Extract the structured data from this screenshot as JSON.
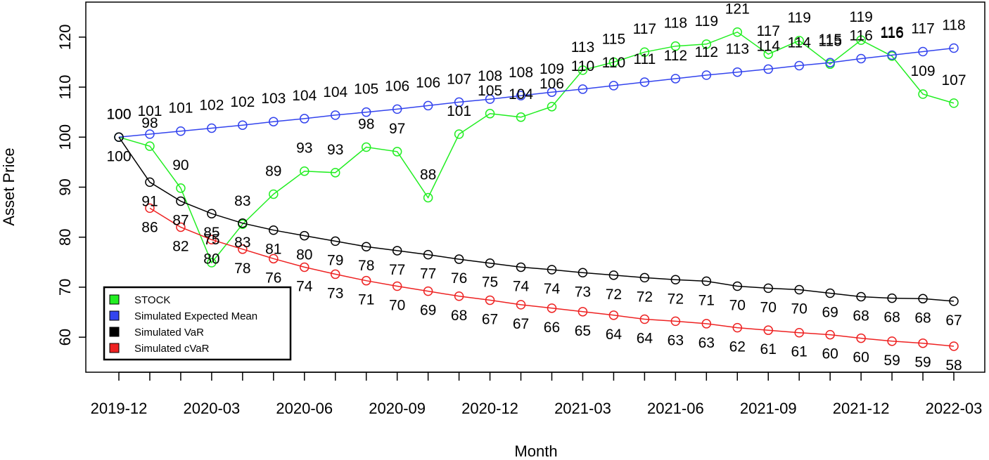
{
  "chart_data": {
    "type": "line",
    "title": "",
    "xlabel": "Month",
    "ylabel": "Asset Price",
    "ylim": [
      53,
      127
    ],
    "yticks": [
      60,
      70,
      80,
      90,
      100,
      110,
      120
    ],
    "x": [
      "2019-12",
      "2020-01",
      "2020-02",
      "2020-03",
      "2020-04",
      "2020-05",
      "2020-06",
      "2020-07",
      "2020-08",
      "2020-09",
      "2020-10",
      "2020-11",
      "2020-12",
      "2021-01",
      "2021-02",
      "2021-03",
      "2021-04",
      "2021-05",
      "2021-06",
      "2021-07",
      "2021-08",
      "2021-09",
      "2021-10",
      "2021-11",
      "2021-12",
      "2022-01",
      "2022-02",
      "2022-03"
    ],
    "xtick_labels": [
      "2019-12",
      "",
      "",
      "2020-03",
      "",
      "",
      "2020-06",
      "",
      "",
      "2020-09",
      "",
      "",
      "2020-12",
      "",
      "",
      "2021-03",
      "",
      "",
      "2021-06",
      "",
      "",
      "2021-09",
      "",
      "",
      "2021-12",
      "",
      "",
      "2022-03"
    ],
    "grid": false,
    "legend_position": "bottom-left",
    "series": [
      {
        "name": "STOCK",
        "color": "#22ee22",
        "values": [
          100,
          98.2,
          89.8,
          74.9,
          82.6,
          88.6,
          93.2,
          92.9,
          98.0,
          97.1,
          87.9,
          100.6,
          104.7,
          104.0,
          106.1,
          113.4,
          115.0,
          117.0,
          118.2,
          118.6,
          121.0,
          116.6,
          119.3,
          114.6,
          119.4,
          116.2,
          108.6,
          106.8
        ],
        "labels": [
          "100",
          "98",
          "90",
          "75",
          "83",
          "89",
          "93",
          "93",
          "98",
          "97",
          "88",
          "101",
          "105",
          "104",
          "106",
          "113",
          "115",
          "117",
          "118",
          "119",
          "121",
          "117",
          "119",
          "115",
          "119",
          "116",
          "109",
          "107"
        ]
      },
      {
        "name": "Simulated Expected Mean",
        "color": "#3344ee",
        "values": [
          100,
          100.6,
          101.2,
          101.8,
          102.4,
          103.1,
          103.7,
          104.4,
          105.0,
          105.6,
          106.3,
          107.0,
          107.6,
          108.3,
          109.0,
          109.6,
          110.3,
          111.0,
          111.7,
          112.4,
          113.0,
          113.6,
          114.3,
          114.9,
          115.7,
          116.4,
          117.1,
          117.8
        ],
        "labels": [
          "100",
          "101",
          "101",
          "102",
          "102",
          "103",
          "104",
          "104",
          "105",
          "106",
          "106",
          "107",
          "108",
          "108",
          "109",
          "110",
          "110",
          "111",
          "112",
          "112",
          "113",
          "114",
          "114",
          "115",
          "116",
          "116",
          "117",
          "118"
        ]
      },
      {
        "name": "Simulated VaR",
        "color": "#000000",
        "values": [
          100,
          91.0,
          87.2,
          84.7,
          82.8,
          81.4,
          80.3,
          79.2,
          78.1,
          77.3,
          76.5,
          75.6,
          74.8,
          74.0,
          73.5,
          72.9,
          72.4,
          71.9,
          71.5,
          71.2,
          70.2,
          69.8,
          69.5,
          68.8,
          68.1,
          67.8,
          67.7,
          67.2
        ],
        "labels": [
          "100",
          "91",
          "87",
          "85",
          "83",
          "81",
          "80",
          "79",
          "78",
          "77",
          "77",
          "76",
          "75",
          "74",
          "74",
          "73",
          "72",
          "72",
          "72",
          "71",
          "70",
          "70",
          "70",
          "69",
          "68",
          "68",
          "68",
          "67"
        ]
      },
      {
        "name": "Simulated cVaR",
        "color": "#ee2222",
        "values": [
          null,
          85.8,
          82.0,
          79.5,
          77.6,
          75.7,
          74.0,
          72.6,
          71.3,
          70.2,
          69.2,
          68.2,
          67.4,
          66.5,
          65.8,
          65.1,
          64.4,
          63.6,
          63.2,
          62.7,
          61.9,
          61.4,
          60.9,
          60.5,
          59.8,
          59.2,
          58.8,
          58.2
        ],
        "labels": [
          "",
          "86",
          "82",
          "80",
          "78",
          "76",
          "74",
          "73",
          "71",
          "70",
          "69",
          "68",
          "67",
          "67",
          "66",
          "65",
          "64",
          "64",
          "63",
          "63",
          "62",
          "61",
          "61",
          "60",
          "60",
          "59",
          "59",
          "58"
        ]
      }
    ]
  }
}
